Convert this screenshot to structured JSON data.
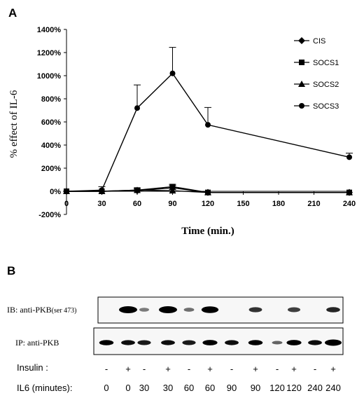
{
  "panel_a_letter": "A",
  "panel_b_letter": "B",
  "chart_data": {
    "type": "line",
    "title": "",
    "xlabel": "Time (min.)",
    "ylabel": "% effect of IL-6",
    "x": [
      0,
      30,
      60,
      90,
      120,
      240
    ],
    "xticks": [
      0,
      30,
      60,
      90,
      120,
      150,
      180,
      210,
      240
    ],
    "xlim": [
      0,
      240
    ],
    "yticks": [
      -200,
      0,
      200,
      400,
      600,
      800,
      1000,
      1200,
      1400
    ],
    "ytick_labels": [
      "-200%",
      "0%",
      "200%",
      "400%",
      "600%",
      "800%",
      "1000%",
      "1200%",
      "1400%"
    ],
    "ylim": [
      -200,
      1400
    ],
    "grid": false,
    "legend_position": "top-right",
    "series": [
      {
        "name": "CIS",
        "marker": "diamond",
        "values": [
          0,
          0,
          5,
          30,
          -10,
          -10
        ],
        "errors": [
          0,
          0,
          15,
          20,
          0,
          0
        ]
      },
      {
        "name": "SOCS1",
        "marker": "square",
        "values": [
          0,
          0,
          10,
          40,
          -10,
          -10
        ],
        "errors": [
          0,
          0,
          20,
          20,
          0,
          0
        ]
      },
      {
        "name": "SOCS2",
        "marker": "triangle",
        "values": [
          0,
          0,
          10,
          5,
          -10,
          -10
        ],
        "errors": [
          0,
          0,
          20,
          10,
          0,
          0
        ]
      },
      {
        "name": "SOCS3",
        "marker": "circle",
        "values": [
          0,
          10,
          720,
          1020,
          575,
          295
        ],
        "errors": [
          0,
          30,
          200,
          225,
          150,
          35
        ]
      }
    ]
  },
  "blot": {
    "ib_label": "IB: anti-PKB",
    "ib_label_suffix": "(ser 473)",
    "ip_label": "IP: anti-PKB",
    "insulin_label": "Insulin :",
    "il6_label": "IL6 (minutes):",
    "insulin_signs": [
      "-",
      "+",
      "-",
      "+",
      "-",
      "+",
      "-",
      "+",
      "-",
      "+",
      "-",
      "+"
    ],
    "il6_minutes": [
      "0",
      "0",
      "30",
      "30",
      "60",
      "60",
      "90",
      "90",
      "120",
      "120",
      "240",
      "240"
    ],
    "ib_band_intensity": [
      0.0,
      1.0,
      0.25,
      1.0,
      0.3,
      0.9,
      0.0,
      0.55,
      0.0,
      0.5,
      0.0,
      0.6
    ],
    "ip_band_intensity": [
      0.75,
      0.7,
      0.65,
      0.7,
      0.65,
      0.8,
      0.7,
      0.75,
      0.35,
      0.8,
      0.7,
      1.0
    ]
  }
}
